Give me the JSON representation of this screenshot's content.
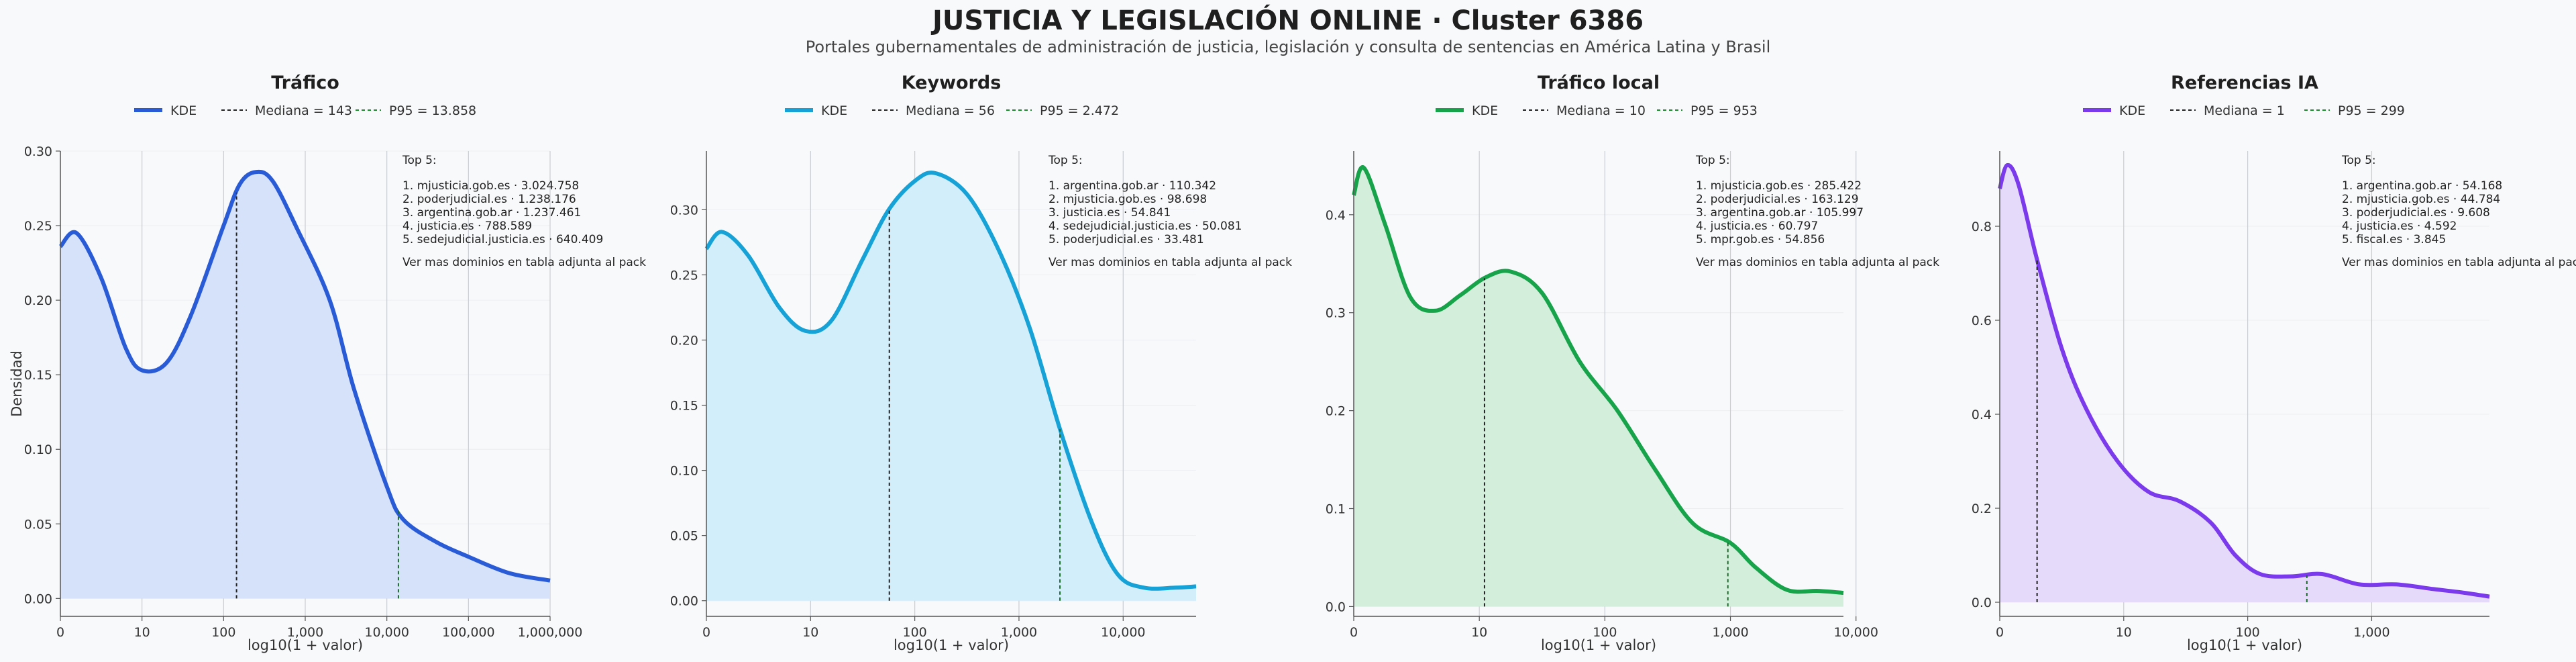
{
  "header": {
    "title": "JUSTICIA Y LEGISLACIÓN ONLINE · Cluster 6386",
    "subtitle": "Portales gubernamentales de administración de justicia, legislación y consulta de sentencias en América Latina y Brasil"
  },
  "colors": {
    "trafico": "#2a5bd7",
    "keywords": "#16a2d6",
    "trafico_local": "#17a34a",
    "referencias": "#7c3aed"
  },
  "chart_data": [
    {
      "type": "area",
      "title": "Tráfico",
      "xlabel": "log10(1 + valor)",
      "ylabel": "Densidad",
      "x_scale": "log10(1+x)",
      "xlim": [
        0,
        6
      ],
      "ylim": [
        -0.012,
        0.3
      ],
      "xticks": [
        "0",
        "10",
        "100",
        "1,000",
        "10,000",
        "100,000",
        "1,000,000"
      ],
      "yticks": [
        "0.00",
        "0.05",
        "0.10",
        "0.15",
        "0.20",
        "0.25",
        "0.30"
      ],
      "ytick_values": [
        0,
        0.05,
        0.1,
        0.15,
        0.2,
        0.25,
        0.3
      ],
      "legend": [
        "KDE",
        "Mediana = 143",
        "P95 = 13.858"
      ],
      "median": 143,
      "p95": 13858,
      "color": "#2a5bd7",
      "fill": "#d6e1fa",
      "grid": "vertical",
      "kde_x": [
        0,
        0.2,
        0.5,
        0.8,
        1.0,
        1.3,
        1.6,
        2.0,
        2.2,
        2.4,
        2.6,
        2.9,
        3.3,
        3.6,
        4.0,
        4.2,
        4.6,
        5.0,
        5.5,
        6.0
      ],
      "kde_y": [
        0.236,
        0.245,
        0.215,
        0.168,
        0.153,
        0.158,
        0.19,
        0.25,
        0.278,
        0.286,
        0.28,
        0.248,
        0.2,
        0.14,
        0.075,
        0.053,
        0.038,
        0.028,
        0.017,
        0.012
      ],
      "top5_title": "Top 5:",
      "top5": [
        "1. mjusticia.gob.es · 3.024.758",
        "2. poderjudicial.es · 1.238.176",
        "3. argentina.gob.ar · 1.237.461",
        "4. justicia.es · 788.589",
        "5. sedejudicial.justicia.es · 640.409"
      ],
      "note": "Ver mas dominios en tabla adjunta al pack"
    },
    {
      "type": "area",
      "title": "Keywords",
      "xlabel": "log10(1 + valor)",
      "ylabel": "",
      "x_scale": "log10(1+x)",
      "xlim": [
        0,
        4.7
      ],
      "ylim": [
        -0.012,
        0.345
      ],
      "xticks": [
        "0",
        "10",
        "100",
        "1,000",
        "10,000"
      ],
      "yticks": [
        "0.00",
        "0.05",
        "0.10",
        "0.15",
        "0.20",
        "0.25",
        "0.30"
      ],
      "ytick_values": [
        0,
        0.05,
        0.1,
        0.15,
        0.2,
        0.25,
        0.3
      ],
      "legend": [
        "KDE",
        "Mediana = 56",
        "P95 = 2.472"
      ],
      "median": 56,
      "p95": 2472,
      "color": "#16a2d6",
      "fill": "#d3eefb",
      "grid": "vertical",
      "kde_x": [
        0,
        0.15,
        0.4,
        0.7,
        0.95,
        1.2,
        1.5,
        1.75,
        2.0,
        2.2,
        2.5,
        2.8,
        3.1,
        3.4,
        3.7,
        3.95,
        4.2,
        4.5,
        4.7
      ],
      "kde_y": [
        0.27,
        0.283,
        0.265,
        0.225,
        0.207,
        0.215,
        0.262,
        0.3,
        0.322,
        0.328,
        0.312,
        0.27,
        0.21,
        0.13,
        0.06,
        0.02,
        0.01,
        0.01,
        0.011
      ],
      "top5_title": "Top 5:",
      "top5": [
        "1. argentina.gob.ar · 110.342",
        "2. mjusticia.gob.es · 98.698",
        "3. justicia.es · 54.841",
        "4. sedejudicial.justicia.es · 50.081",
        "5. poderjudicial.es · 33.481"
      ],
      "note": "Ver mas dominios en tabla adjunta al pack"
    },
    {
      "type": "area",
      "title": "Tráfico local",
      "xlabel": "log10(1 + valor)",
      "ylabel": "",
      "x_scale": "log10(1+x)",
      "xlim": [
        0,
        3.9
      ],
      "ylim": [
        -0.01,
        0.465
      ],
      "xticks": [
        "0",
        "10",
        "100",
        "1,000",
        "10,000"
      ],
      "yticks": [
        "0.0",
        "0.1",
        "0.2",
        "0.3",
        "0.4"
      ],
      "ytick_values": [
        0,
        0.1,
        0.2,
        0.3,
        0.4
      ],
      "legend": [
        "KDE",
        "Mediana = 10",
        "P95 = 953"
      ],
      "median": 10,
      "p95": 953,
      "color": "#17a34a",
      "fill": "#d4eedc",
      "grid": "vertical",
      "kde_x": [
        0,
        0.08,
        0.25,
        0.45,
        0.65,
        0.85,
        1.05,
        1.25,
        1.5,
        1.8,
        2.1,
        2.4,
        2.7,
        3.0,
        3.2,
        3.45,
        3.7,
        3.9
      ],
      "kde_y": [
        0.42,
        0.448,
        0.39,
        0.316,
        0.302,
        0.318,
        0.336,
        0.342,
        0.32,
        0.25,
        0.2,
        0.14,
        0.085,
        0.065,
        0.04,
        0.017,
        0.016,
        0.014
      ],
      "top5_title": "Top 5:",
      "top5": [
        "1. mjusticia.gob.es · 285.422",
        "2. poderjudicial.es · 163.129",
        "3. argentina.gob.ar · 105.997",
        "4. justicia.es · 60.797",
        "5. mpr.gob.es · 54.856"
      ],
      "note": "Ver mas dominios en tabla adjunta al pack"
    },
    {
      "type": "area",
      "title": "Referencias IA",
      "xlabel": "log10(1 + valor)",
      "ylabel": "",
      "x_scale": "log10(1+x)",
      "xlim": [
        0,
        3.95
      ],
      "ylim": [
        -0.03,
        0.96
      ],
      "xticks": [
        "0",
        "10",
        "100",
        "1,000"
      ],
      "yticks": [
        "0.0",
        "0.2",
        "0.4",
        "0.6",
        "0.8"
      ],
      "ytick_values": [
        0,
        0.2,
        0.4,
        0.6,
        0.8
      ],
      "legend": [
        "KDE",
        "Mediana = 1",
        "P95 = 299"
      ],
      "median": 1,
      "p95": 299,
      "color": "#7c3aed",
      "fill": "#e6dafb",
      "grid": "vertical",
      "kde_x": [
        0,
        0.06,
        0.15,
        0.3,
        0.5,
        0.7,
        0.95,
        1.2,
        1.45,
        1.7,
        1.9,
        2.1,
        2.35,
        2.6,
        2.9,
        3.2,
        3.5,
        3.75,
        3.95
      ],
      "kde_y": [
        0.88,
        0.93,
        0.89,
        0.73,
        0.54,
        0.41,
        0.3,
        0.235,
        0.215,
        0.17,
        0.1,
        0.06,
        0.055,
        0.06,
        0.038,
        0.038,
        0.028,
        0.02,
        0.012
      ],
      "top5_title": "Top 5:",
      "top5": [
        "1. argentina.gob.ar · 54.168",
        "2. mjusticia.gob.es · 44.784",
        "3. poderjudicial.es · 9.608",
        "4. justicia.es · 4.592",
        "5. fiscal.es · 3.845"
      ],
      "note": "Ver mas dominios en tabla adjunta al pack"
    }
  ]
}
